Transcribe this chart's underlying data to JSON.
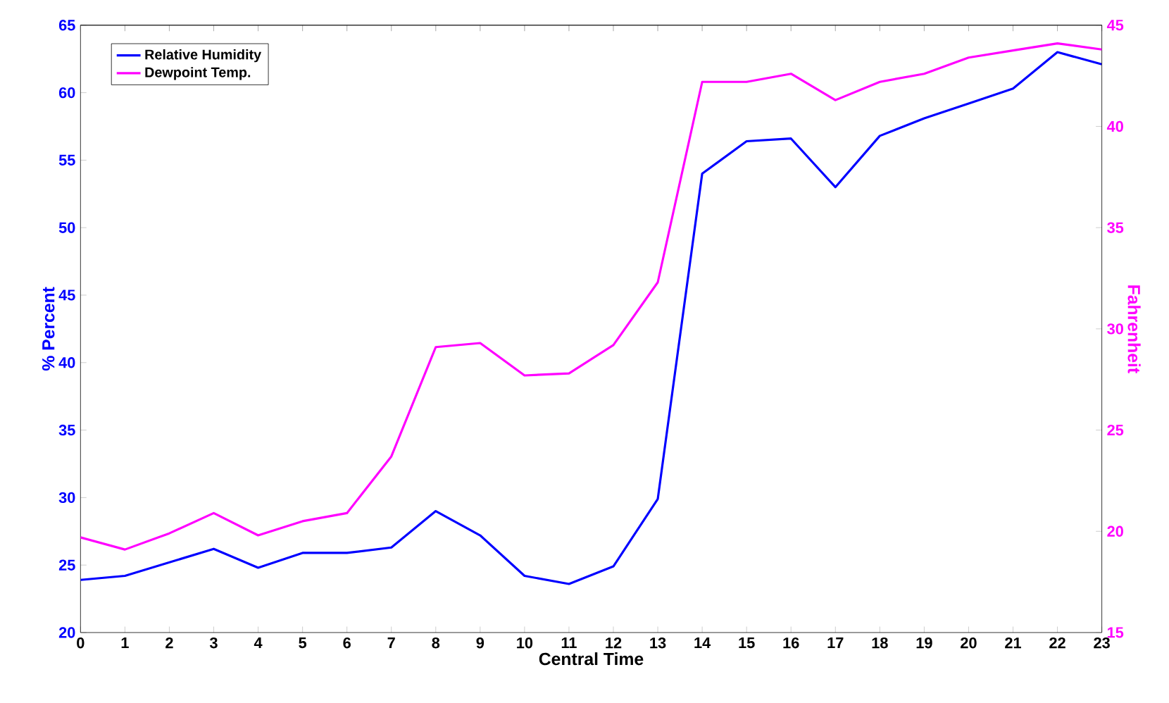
{
  "chart_data": {
    "type": "line",
    "xlabel": "Central Time",
    "ylabel": "% Percent",
    "y2label": "Fahrenheit",
    "x": [
      0,
      1,
      2,
      3,
      4,
      5,
      6,
      7,
      8,
      9,
      10,
      11,
      12,
      13,
      14,
      15,
      16,
      17,
      18,
      19,
      20,
      21,
      22,
      23
    ],
    "xlim": [
      0,
      23
    ],
    "xticks": [
      0,
      1,
      2,
      3,
      4,
      5,
      6,
      7,
      8,
      9,
      10,
      11,
      12,
      13,
      14,
      15,
      16,
      17,
      18,
      19,
      20,
      21,
      22,
      23
    ],
    "ylim": [
      20,
      65
    ],
    "yticks": [
      20,
      25,
      30,
      35,
      40,
      45,
      50,
      55,
      60,
      65
    ],
    "y2lim": [
      15,
      45
    ],
    "y2ticks": [
      15,
      20,
      25,
      30,
      35,
      40,
      45
    ],
    "legend": "top left",
    "series": [
      {
        "name": "Relative Humidity",
        "color": "#0000ff",
        "values": [
          23.9,
          24.2,
          25.2,
          26.2,
          24.8,
          25.9,
          25.9,
          26.3,
          29.0,
          27.2,
          24.2,
          23.6,
          24.9,
          29.9,
          54.0,
          56.4,
          56.6,
          53.0,
          56.8,
          58.1,
          59.2,
          60.3,
          63.0,
          62.1
        ]
      },
      {
        "name": "Dewpoint Temp.",
        "color": "#ff00ff",
        "axis": "y2",
        "values": [
          19.7,
          19.1,
          19.9,
          20.9,
          19.8,
          20.5,
          20.9,
          23.7,
          29.1,
          29.3,
          27.7,
          27.8,
          29.2,
          32.3,
          42.2,
          42.2,
          42.6,
          41.3,
          42.2,
          42.6,
          43.4,
          43.75,
          44.1,
          43.8
        ]
      }
    ]
  }
}
